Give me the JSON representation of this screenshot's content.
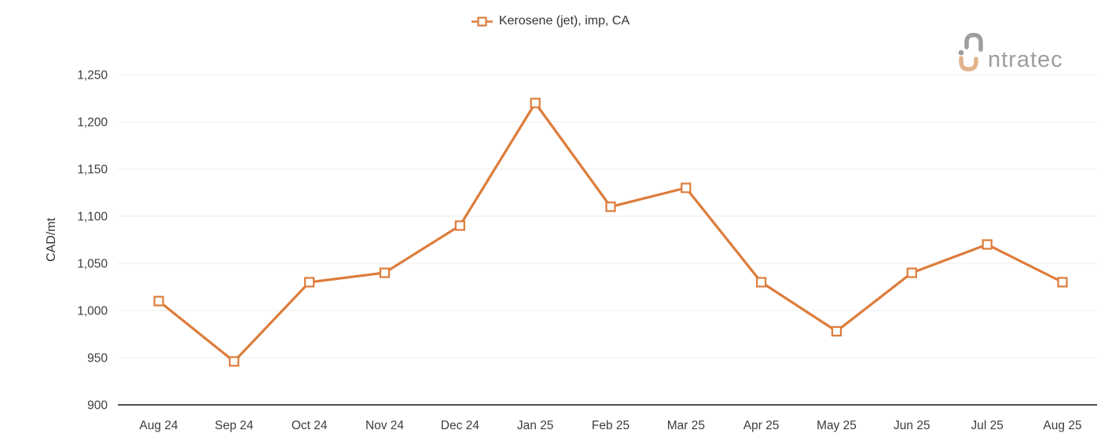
{
  "legend": {
    "label": "Kerosene (jet), imp, CA"
  },
  "logo": {
    "brand": "intratec",
    "text_after_mark": "ntratec"
  },
  "colors": {
    "series_orange": "#DD7C3B",
    "grid": "#ededed",
    "axis": "#505050",
    "tick_text": "#3d3d3d",
    "logo_gray": "#9e9e9e",
    "logo_tan": "#E2B48C"
  },
  "chart_data": {
    "type": "line",
    "title": "",
    "legend_position": "top-center",
    "grid": true,
    "xlabel": "",
    "ylabel": "CAD/mt",
    "ylim": [
      900,
      1250
    ],
    "ytick_step": 50,
    "yticks": [
      900,
      950,
      1000,
      1050,
      1100,
      1150,
      1200,
      1250
    ],
    "categories": [
      "Aug 24",
      "Sep 24",
      "Oct 24",
      "Nov 24",
      "Dec 24",
      "Jan 25",
      "Feb 25",
      "Mar 25",
      "Apr 25",
      "May 25",
      "Jun 25",
      "Jul 25",
      "Aug 25"
    ],
    "series": [
      {
        "name": "Kerosene (jet), imp, CA",
        "marker": "hollow-square",
        "color": "#DD7C3B",
        "values": [
          1010,
          946,
          1030,
          1040,
          1090,
          1220,
          1110,
          1130,
          1030,
          978,
          1040,
          1070,
          1030
        ]
      }
    ]
  }
}
